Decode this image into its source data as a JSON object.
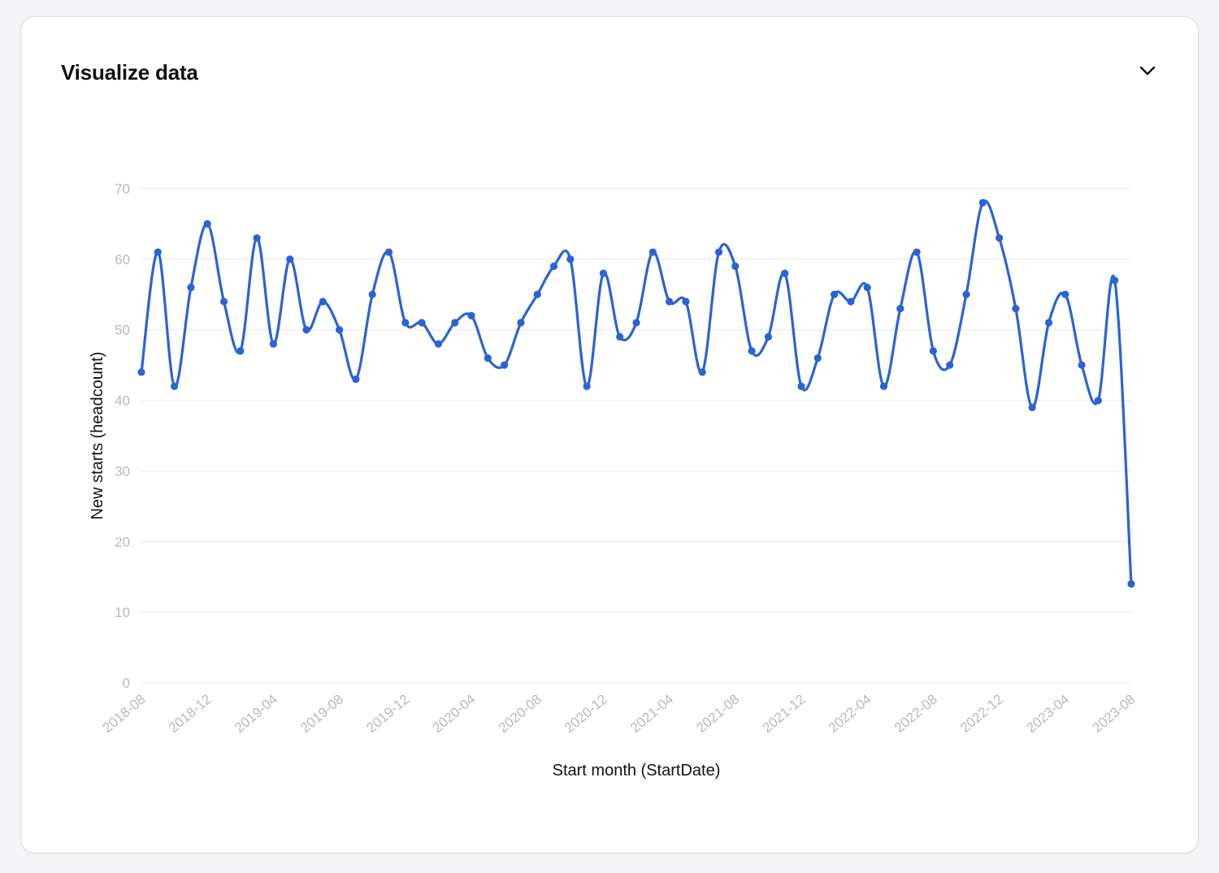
{
  "panel": {
    "title": "Visualize data",
    "toggle_icon": "chevron-down-icon"
  },
  "colors": {
    "series": "#2a63d4",
    "grid": "#ececf0",
    "tick_text": "#b8b8be"
  },
  "chart_data": {
    "type": "line",
    "curve": "smooth",
    "markers": true,
    "grid": true,
    "xlabel": "Start month (StartDate)",
    "ylabel": "New starts (headcount)",
    "ylim": [
      0,
      70
    ],
    "yticks": [
      0,
      10,
      20,
      30,
      40,
      50,
      60,
      70
    ],
    "xlim": [
      "2018-08",
      "2023-08"
    ],
    "xticks": [
      "2018-08",
      "2018-12",
      "2019-04",
      "2019-08",
      "2019-12",
      "2020-04",
      "2020-08",
      "2020-12",
      "2021-04",
      "2021-08",
      "2021-12",
      "2022-04",
      "2022-08",
      "2022-12",
      "2023-04",
      "2023-08"
    ],
    "x": [
      "2018-08",
      "2018-09",
      "2018-10",
      "2018-11",
      "2018-12",
      "2019-01",
      "2019-02",
      "2019-03",
      "2019-04",
      "2019-05",
      "2019-06",
      "2019-07",
      "2019-08",
      "2019-09",
      "2019-10",
      "2019-11",
      "2019-12",
      "2020-01",
      "2020-02",
      "2020-03",
      "2020-04",
      "2020-05",
      "2020-06",
      "2020-07",
      "2020-08",
      "2020-09",
      "2020-10",
      "2020-11",
      "2020-12",
      "2021-01",
      "2021-02",
      "2021-03",
      "2021-04",
      "2021-05",
      "2021-06",
      "2021-07",
      "2021-08",
      "2021-09",
      "2021-10",
      "2021-11",
      "2021-12",
      "2022-01",
      "2022-02",
      "2022-03",
      "2022-04",
      "2022-05",
      "2022-06",
      "2022-07",
      "2022-08",
      "2022-09",
      "2022-10",
      "2022-11",
      "2022-12",
      "2023-01",
      "2023-02",
      "2023-03",
      "2023-04",
      "2023-05",
      "2023-06",
      "2023-07",
      "2023-08"
    ],
    "series": [
      {
        "values": [
          44,
          61,
          42,
          56,
          65,
          54,
          47,
          63,
          48,
          60,
          50,
          54,
          50,
          43,
          55,
          61,
          51,
          51,
          48,
          51,
          52,
          46,
          45,
          51,
          55,
          59,
          60,
          42,
          58,
          49,
          51,
          61,
          54,
          54,
          44,
          61,
          59,
          47,
          49,
          58,
          42,
          46,
          55,
          54,
          56,
          42,
          53,
          61,
          47,
          45,
          55,
          68,
          63,
          53,
          39,
          51,
          55,
          45,
          40,
          57,
          14
        ]
      }
    ]
  }
}
